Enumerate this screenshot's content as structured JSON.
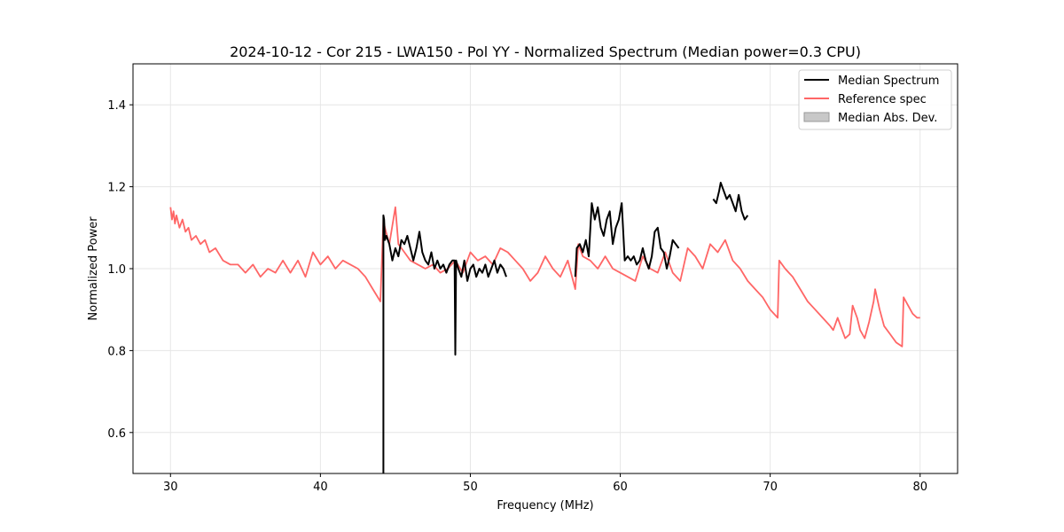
{
  "chart_data": {
    "type": "line",
    "title": "2024-10-12 - Cor 215 - LWA150 - Pol YY - Normalized Spectrum (Median power=0.3 CPU)",
    "xlabel": "Frequency (MHz)",
    "ylabel": "Normalized Power",
    "xlim": [
      27.5,
      82.5
    ],
    "ylim": [
      0.5,
      1.5
    ],
    "xticks": [
      30,
      40,
      50,
      60,
      70,
      80
    ],
    "yticks": [
      0.6,
      0.8,
      1.0,
      1.2,
      1.4
    ],
    "xtick_labels": [
      "30",
      "40",
      "50",
      "60",
      "70",
      "80"
    ],
    "ytick_labels": [
      "0.6",
      "0.8",
      "1.0",
      "1.2",
      "1.4"
    ],
    "grid": true,
    "legend_position": "top-right",
    "legend": [
      "Median Spectrum",
      "Reference spec",
      "Median Abs. Dev."
    ],
    "colors": {
      "median": "#000000",
      "reference": "#ff6666",
      "mad": "#c8c8c8"
    },
    "series": [
      {
        "name": "Reference spec",
        "color": "#ff6666",
        "x": [
          30.0,
          30.1,
          30.2,
          30.3,
          30.4,
          30.6,
          30.8,
          31.0,
          31.2,
          31.4,
          31.7,
          32.0,
          32.3,
          32.6,
          33.0,
          33.5,
          34.0,
          34.5,
          35.0,
          35.5,
          36.0,
          36.5,
          37.0,
          37.5,
          38.0,
          38.5,
          39.0,
          39.5,
          40.0,
          40.5,
          41.0,
          41.5,
          42.0,
          42.5,
          43.0,
          43.5,
          44.0,
          44.2,
          44.3,
          44.6,
          45.0,
          45.2,
          45.6,
          46.0,
          46.5,
          47.0,
          47.5,
          48.0,
          48.5,
          49.0,
          49.5,
          50.0,
          50.5,
          51.0,
          51.5,
          52.0,
          52.5,
          53.0,
          53.5,
          54.0,
          54.5,
          55.0,
          55.5,
          56.0,
          56.5,
          57.0,
          57.2,
          57.5,
          58.0,
          58.5,
          59.0,
          59.5,
          60.0,
          60.5,
          61.0,
          61.5,
          62.0,
          62.5,
          63.0,
          63.5,
          64.0,
          64.5,
          65.0,
          65.5,
          66.0,
          66.5,
          67.0,
          67.5,
          68.0,
          68.5,
          69.0,
          69.5,
          70.0,
          70.5,
          70.6,
          71.0,
          71.5,
          72.0,
          72.5,
          73.0,
          73.5,
          74.0,
          74.2,
          74.5,
          74.8,
          75.0,
          75.3,
          75.5,
          75.8,
          76.0,
          76.3,
          76.6,
          76.9,
          77.0,
          77.3,
          77.6,
          78.0,
          78.4,
          78.8,
          78.9,
          79.2,
          79.5,
          79.8,
          80.0
        ],
        "values": [
          1.15,
          1.12,
          1.14,
          1.11,
          1.13,
          1.1,
          1.12,
          1.09,
          1.1,
          1.07,
          1.08,
          1.06,
          1.07,
          1.04,
          1.05,
          1.02,
          1.01,
          1.01,
          0.99,
          1.01,
          0.98,
          1.0,
          0.99,
          1.02,
          0.99,
          1.02,
          0.98,
          1.04,
          1.01,
          1.03,
          1.0,
          1.02,
          1.01,
          1.0,
          0.98,
          0.95,
          0.92,
          1.12,
          1.1,
          1.06,
          1.15,
          1.06,
          1.04,
          1.02,
          1.01,
          1.0,
          1.01,
          0.99,
          1.0,
          1.02,
          0.99,
          1.04,
          1.02,
          1.03,
          1.01,
          1.05,
          1.04,
          1.02,
          1.0,
          0.97,
          0.99,
          1.03,
          1.0,
          0.98,
          1.02,
          0.95,
          1.06,
          1.03,
          1.02,
          1.0,
          1.03,
          1.0,
          0.99,
          0.98,
          0.97,
          1.03,
          1.0,
          0.99,
          1.04,
          0.99,
          0.97,
          1.05,
          1.03,
          1.0,
          1.06,
          1.04,
          1.07,
          1.02,
          1.0,
          0.97,
          0.95,
          0.93,
          0.9,
          0.88,
          1.02,
          1.0,
          0.98,
          0.95,
          0.92,
          0.9,
          0.88,
          0.86,
          0.85,
          0.88,
          0.85,
          0.83,
          0.84,
          0.91,
          0.88,
          0.85,
          0.83,
          0.87,
          0.92,
          0.95,
          0.9,
          0.86,
          0.84,
          0.82,
          0.81,
          0.93,
          0.91,
          0.89,
          0.88,
          0.88
        ]
      },
      {
        "name": "Median Spectrum",
        "color": "#000000",
        "segments": [
          {
            "x": [
              44.2,
              44.2,
              44.25,
              44.3,
              44.4,
              44.6,
              44.8,
              45.0,
              45.2,
              45.4,
              45.6,
              45.8,
              46.0,
              46.2,
              46.4,
              46.6,
              46.8,
              47.0,
              47.2,
              47.4,
              47.6,
              47.8,
              48.0,
              48.2,
              48.4,
              48.6,
              48.8,
              48.95,
              49.0,
              49.05,
              49.2,
              49.4,
              49.6,
              49.8,
              50.0,
              50.2,
              50.4,
              50.6,
              50.8,
              51.0,
              51.2,
              51.4,
              51.6,
              51.8,
              52.0,
              52.2,
              52.4
            ],
            "values": [
              0.5,
              1.13,
              1.12,
              1.07,
              1.08,
              1.06,
              1.02,
              1.05,
              1.03,
              1.07,
              1.06,
              1.08,
              1.05,
              1.02,
              1.05,
              1.09,
              1.04,
              1.02,
              1.01,
              1.04,
              1.0,
              1.02,
              1.0,
              1.01,
              0.99,
              1.01,
              1.02,
              1.02,
              0.79,
              1.02,
              1.0,
              0.98,
              1.02,
              0.97,
              1.0,
              1.01,
              0.98,
              1.0,
              0.99,
              1.01,
              0.98,
              1.0,
              1.02,
              0.99,
              1.01,
              1.0,
              0.98
            ]
          },
          {
            "x": [
              57.0,
              57.1,
              57.3,
              57.5,
              57.7,
              57.9,
              58.1,
              58.3,
              58.5,
              58.7,
              58.9,
              59.1,
              59.3,
              59.5,
              59.7,
              59.9,
              60.1,
              60.3,
              60.5,
              60.7,
              60.9,
              61.1,
              61.3,
              61.5,
              61.7,
              61.9,
              62.1,
              62.3,
              62.5,
              62.7,
              62.9,
              63.1,
              63.3,
              63.5,
              63.7,
              63.9
            ],
            "values": [
              0.98,
              1.05,
              1.06,
              1.04,
              1.07,
              1.03,
              1.16,
              1.12,
              1.15,
              1.1,
              1.08,
              1.12,
              1.14,
              1.06,
              1.1,
              1.12,
              1.16,
              1.02,
              1.03,
              1.02,
              1.03,
              1.01,
              1.02,
              1.05,
              1.02,
              1.0,
              1.03,
              1.09,
              1.1,
              1.05,
              1.04,
              1.0,
              1.03,
              1.07,
              1.06,
              1.05
            ]
          },
          {
            "x": [
              66.2,
              66.4,
              66.6,
              66.7,
              66.9,
              67.1,
              67.3,
              67.5,
              67.7,
              67.9,
              68.1,
              68.3,
              68.5
            ],
            "values": [
              1.17,
              1.16,
              1.19,
              1.21,
              1.19,
              1.17,
              1.18,
              1.16,
              1.14,
              1.18,
              1.14,
              1.12,
              1.13
            ]
          }
        ]
      }
    ]
  }
}
